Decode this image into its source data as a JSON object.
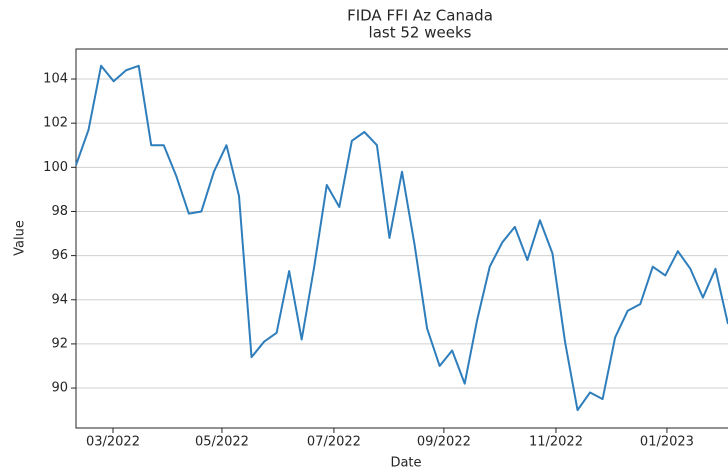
{
  "chart_data": {
    "type": "line",
    "title": "FIDA FFI Az Canada",
    "subtitle": "last 52 weeks",
    "x_label": "Date",
    "y_label": "Value",
    "series": [
      {
        "name": "FIDA FFI Az Canada",
        "color": "#2f7ebc",
        "values": [
          100.1,
          101.7,
          104.6,
          103.9,
          104.4,
          104.6,
          101.0,
          101.0,
          99.6,
          97.9,
          98.0,
          99.8,
          101.0,
          98.7,
          91.4,
          92.1,
          92.5,
          95.3,
          92.2,
          95.5,
          99.2,
          98.2,
          101.2,
          101.6,
          101.0,
          96.8,
          99.8,
          96.5,
          92.7,
          91.0,
          91.7,
          90.2,
          93.1,
          95.5,
          96.6,
          97.3,
          95.8,
          97.6,
          96.1,
          92.1,
          89.0,
          89.8,
          89.5,
          92.3,
          93.5,
          93.8,
          95.5,
          95.1,
          96.2,
          95.4,
          94.1,
          95.4,
          92.9
        ]
      }
    ],
    "xlim": [
      0,
      52
    ],
    "xticks": [
      {
        "value": 2.95,
        "label": "03/2022"
      },
      {
        "value": 11.64,
        "label": "05/2022"
      },
      {
        "value": 20.57,
        "label": "07/2022"
      },
      {
        "value": 29.34,
        "label": "09/2022"
      },
      {
        "value": 38.28,
        "label": "11/2022"
      },
      {
        "value": 47.13,
        "label": "01/2023"
      }
    ],
    "ylim": [
      88.19,
      105.36
    ],
    "yticks": [
      90,
      92,
      94,
      96,
      98,
      100,
      102,
      104
    ],
    "grid": true
  }
}
